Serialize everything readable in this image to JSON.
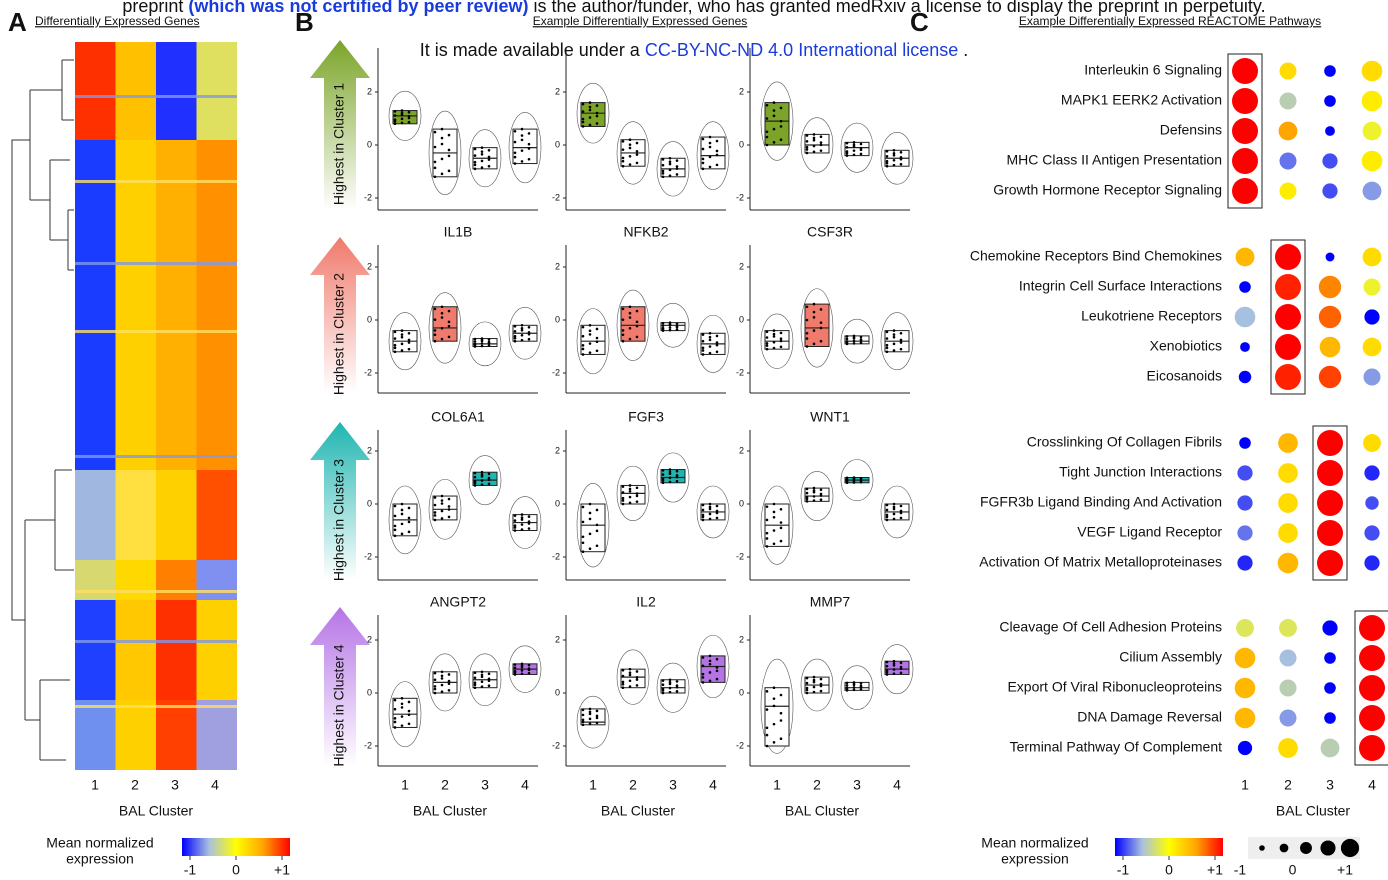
{
  "header": {
    "line1": [
      "preprint ",
      "(which was not certified by peer review)",
      " is the author/funder, who has granted medRxiv a license to display the preprint in perpetuity."
    ],
    "line2": [
      "It is made available under a ",
      "CC-BY-NC-ND 4.0 International license",
      " ."
    ]
  },
  "clusters": [
    1,
    2,
    3,
    4
  ],
  "x_label": "BAL Cluster",
  "legend": {
    "title_lines": [
      "Mean normalized",
      "expression"
    ],
    "ticks": [
      -1,
      0,
      {
        "value": 1,
        "label": "+1"
      }
    ]
  },
  "panel_a": {
    "letter": "A",
    "title": "Differentially Expressed Genes"
  },
  "panel_b": {
    "letter": "B",
    "title": "Example Differentially Expressed Genes",
    "yticks": [
      2,
      0,
      -2
    ],
    "rows": [
      {
        "arrow_label": "Highest in Cluster 1",
        "color": "#7ba428",
        "highlight": 1,
        "genes": [
          {
            "boxes": [
              [
                0.8,
                1.1,
                1.3
              ],
              [
                -1.2,
                -0.3,
                0.6
              ],
              [
                -0.9,
                -0.5,
                -0.1
              ],
              [
                -0.7,
                -0.1,
                0.6
              ]
            ]
          },
          {
            "boxes": [
              [
                0.7,
                1.2,
                1.6
              ],
              [
                -0.8,
                -0.3,
                0.2
              ],
              [
                -1.2,
                -0.9,
                -0.5
              ],
              [
                -0.9,
                -0.4,
                0.3
              ]
            ]
          },
          {
            "boxes": [
              [
                0.0,
                0.9,
                1.6
              ],
              [
                -0.3,
                0.0,
                0.4
              ],
              [
                -0.4,
                -0.1,
                0.1
              ],
              [
                -0.8,
                -0.5,
                -0.2
              ]
            ]
          }
        ]
      },
      {
        "arrow_label": "Highest in Cluster 2",
        "color": "#f07a6c",
        "highlight": 2,
        "genes": [
          {
            "name": "IL1B",
            "boxes": [
              [
                -1.2,
                -0.8,
                -0.4
              ],
              [
                -0.8,
                -0.3,
                0.5
              ],
              [
                -1.0,
                -0.9,
                -0.7
              ],
              [
                -0.8,
                -0.5,
                -0.2
              ]
            ]
          },
          {
            "name": "NFKB2",
            "boxes": [
              [
                -1.3,
                -0.8,
                -0.2
              ],
              [
                -0.8,
                -0.2,
                0.5
              ],
              [
                -0.4,
                -0.2,
                -0.1
              ],
              [
                -1.3,
                -0.9,
                -0.5
              ]
            ]
          },
          {
            "name": "CSF3R",
            "boxes": [
              [
                -1.1,
                -0.8,
                -0.4
              ],
              [
                -1.0,
                -0.3,
                0.6
              ],
              [
                -0.9,
                -0.8,
                -0.6
              ],
              [
                -1.2,
                -0.8,
                -0.4
              ]
            ]
          }
        ]
      },
      {
        "arrow_label": "Highest in Cluster 3",
        "color": "#1fb5b0",
        "highlight": 3,
        "genes": [
          {
            "name": "COL6A1",
            "boxes": [
              [
                -1.2,
                -0.6,
                0.0
              ],
              [
                -0.6,
                -0.2,
                0.3
              ],
              [
                0.7,
                0.9,
                1.2
              ],
              [
                -1.0,
                -0.7,
                -0.4
              ]
            ]
          },
          {
            "name": "FGF3",
            "boxes": [
              [
                -1.8,
                -0.8,
                0.0
              ],
              [
                0.0,
                0.4,
                0.7
              ],
              [
                0.8,
                1.0,
                1.3
              ],
              [
                -0.6,
                -0.3,
                0.0
              ]
            ]
          },
          {
            "name": "WNT1",
            "boxes": [
              [
                -1.6,
                -0.8,
                0.0
              ],
              [
                0.1,
                0.3,
                0.6
              ],
              [
                0.8,
                0.9,
                1.0
              ],
              [
                -0.6,
                -0.3,
                0.0
              ]
            ]
          }
        ]
      },
      {
        "arrow_label": "Highest in Cluster 4",
        "color": "#b574e6",
        "highlight": 4,
        "genes": [
          {
            "name": "ANGPT2",
            "boxes": [
              [
                -1.3,
                -0.8,
                -0.2
              ],
              [
                0.0,
                0.4,
                0.8
              ],
              [
                0.2,
                0.5,
                0.8
              ],
              [
                0.7,
                0.9,
                1.1
              ]
            ]
          },
          {
            "name": "IL2",
            "boxes": [
              [
                -1.2,
                -1.1,
                -0.6
              ],
              [
                0.2,
                0.6,
                0.9
              ],
              [
                0.0,
                0.2,
                0.5
              ],
              [
                0.4,
                1.0,
                1.4
              ]
            ]
          },
          {
            "name": "MMP7",
            "boxes": [
              [
                -2.0,
                -0.5,
                0.2
              ],
              [
                0.0,
                0.3,
                0.6
              ],
              [
                0.1,
                0.2,
                0.4
              ],
              [
                0.7,
                0.9,
                1.2
              ]
            ]
          }
        ]
      }
    ]
  },
  "panel_c": {
    "letter": "C",
    "title": "Example Differentially Expressed REACTOME Pathways",
    "size_ticks": [
      -1,
      0,
      {
        "value": 1,
        "label": "+1"
      }
    ],
    "groups": [
      {
        "highlight": 1,
        "terms": [
          {
            "name": "Interleukin 6 Signaling",
            "color": [
              1,
              0.2,
              -1,
              0.2
            ],
            "size": [
              1,
              0,
              -0.6,
              0.4
            ]
          },
          {
            "name": "MAPK1 EERK2 Activation",
            "color": [
              1,
              -0.4,
              -1,
              0.1
            ],
            "size": [
              1,
              0,
              -0.6,
              0.4
            ]
          },
          {
            "name": "Defensins",
            "color": [
              1,
              0.5,
              -1,
              -0.1
            ],
            "size": [
              1,
              0.2,
              -0.8,
              0.2
            ]
          },
          {
            "name": "MHC Class II Antigen Presentation",
            "color": [
              1,
              -0.7,
              -0.8,
              0.1
            ],
            "size": [
              1,
              0,
              -0.2,
              0.4
            ]
          },
          {
            "name": "Growth Hormone Receptor Signaling",
            "color": [
              1,
              0.1,
              -0.8,
              -0.6
            ],
            "size": [
              1,
              0,
              -0.2,
              0.2
            ]
          }
        ]
      },
      {
        "highlight": 2,
        "terms": [
          {
            "name": "Chemokine Receptors Bind Chemokines",
            "color": [
              0.4,
              1,
              -1,
              0.2
            ],
            "size": [
              0.2,
              1,
              -0.9,
              0.2
            ]
          },
          {
            "name": "Integrin Cell Surface Interactions",
            "color": [
              -1,
              0.9,
              0.6,
              -0.1
            ],
            "size": [
              -0.6,
              1,
              0.6,
              0
            ]
          },
          {
            "name": "Leukotriene Receptors",
            "color": [
              -0.5,
              1,
              0.7,
              -1
            ],
            "size": [
              0.4,
              1,
              0.6,
              -0.2
            ]
          },
          {
            "name": "Xenobiotics",
            "color": [
              -1,
              1,
              0.4,
              0.2
            ],
            "size": [
              -0.8,
              1,
              0.4,
              0.2
            ]
          },
          {
            "name": "Eicosanoids",
            "color": [
              -1,
              0.9,
              0.8,
              -0.6
            ],
            "size": [
              -0.5,
              1,
              0.6,
              0
            ]
          }
        ]
      },
      {
        "highlight": 3,
        "terms": [
          {
            "name": "Crosslinking Of Collagen Fibrils",
            "color": [
              -1,
              0.4,
              1,
              0.2
            ],
            "size": [
              -0.6,
              0.3,
              1,
              0.1
            ]
          },
          {
            "name": "Tight Junction Interactions",
            "color": [
              -0.8,
              0.2,
              1,
              -0.9
            ],
            "size": [
              -0.2,
              0.3,
              1,
              -0.2
            ]
          },
          {
            "name": "FGFR3b Ligand Binding And Activation",
            "color": [
              -0.8,
              0.2,
              1,
              -0.8
            ],
            "size": [
              -0.2,
              0.3,
              1,
              -0.4
            ]
          },
          {
            "name": "VEGF Ligand Receptor",
            "color": [
              -0.7,
              0.2,
              1,
              -0.8
            ],
            "size": [
              -0.2,
              0.3,
              1,
              -0.2
            ]
          },
          {
            "name": "Activation Of Matrix Metalloproteinases",
            "color": [
              -0.9,
              0.4,
              1,
              -0.9
            ],
            "size": [
              -0.2,
              0.4,
              1,
              -0.2
            ]
          }
        ]
      },
      {
        "highlight": 4,
        "terms": [
          {
            "name": "Cleavage Of Cell Adhesion Proteins",
            "color": [
              -0.2,
              -0.2,
              -1,
              1
            ],
            "size": [
              0.1,
              0.1,
              -0.2,
              1
            ]
          },
          {
            "name": "Cilium Assembly",
            "color": [
              0.4,
              -0.5,
              -1,
              1
            ],
            "size": [
              0.4,
              0,
              -0.6,
              1
            ]
          },
          {
            "name": "Export Of Viral Ribonucleoproteins",
            "color": [
              0.4,
              -0.4,
              -1,
              1
            ],
            "size": [
              0.4,
              0,
              -0.6,
              1
            ]
          },
          {
            "name": "DNA Damage Reversal",
            "color": [
              0.4,
              -0.6,
              -1,
              1
            ],
            "size": [
              0.4,
              0,
              -0.6,
              1
            ]
          },
          {
            "name": "Terminal Pathway Of Complement",
            "color": [
              -1,
              0.2,
              -0.4,
              1
            ],
            "size": [
              -0.3,
              0.3,
              0.2,
              1
            ]
          }
        ]
      }
    ]
  }
}
